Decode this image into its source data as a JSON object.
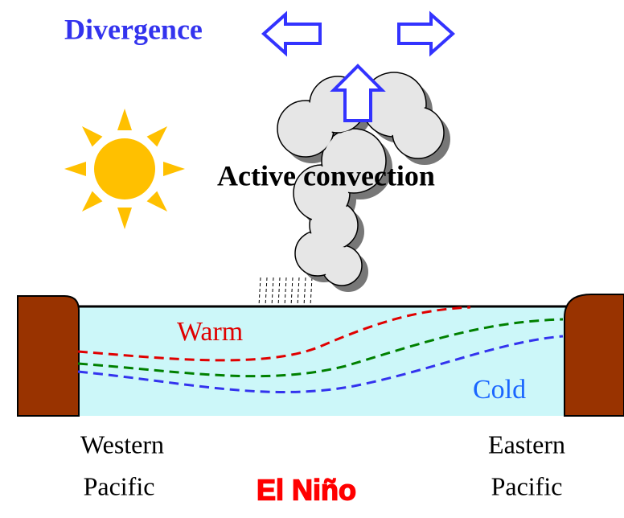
{
  "labels": {
    "divergence": "Divergence",
    "convection": "Active convection",
    "warm": "Warm",
    "cold": "Cold",
    "west": [
      "Western",
      "Pacific"
    ],
    "east": [
      "Eastern",
      "Pacific"
    ],
    "title": "El Niño"
  }
}
